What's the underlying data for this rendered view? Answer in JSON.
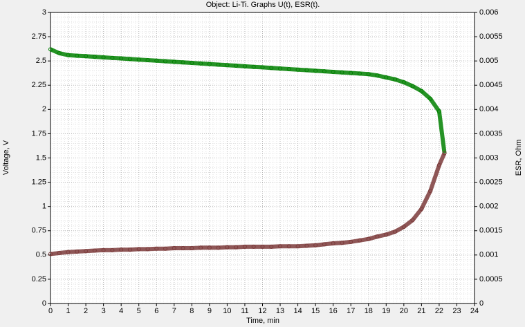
{
  "chart_data": {
    "type": "line",
    "title": "Object: Li-Ti. Graphs U(t), ESR(t).",
    "x_label": "Time, min",
    "y_label": "Voltage, V",
    "y2_label": "ESR, Ohm",
    "xlim": [
      0,
      24
    ],
    "xticks": [
      0,
      1,
      2,
      3,
      4,
      5,
      6,
      7,
      8,
      9,
      10,
      11,
      12,
      13,
      14,
      15,
      16,
      17,
      18,
      19,
      20,
      21,
      22,
      23,
      24
    ],
    "ylim": [
      0,
      3
    ],
    "yticks": [
      0,
      0.25,
      0.5,
      0.75,
      1,
      1.25,
      1.5,
      1.75,
      2,
      2.25,
      2.5,
      2.75,
      3
    ],
    "y2lim": [
      0,
      0.006
    ],
    "y2ticks": [
      0,
      0.0005,
      0.001,
      0.0015,
      0.002,
      0.0025,
      0.003,
      0.0035,
      0.004,
      0.0045,
      0.005,
      0.0055,
      0.006
    ],
    "grid": true,
    "series": [
      {
        "color": "#008000",
        "x": [
          0,
          0.5,
          1,
          1.5,
          2,
          2.5,
          3,
          3.5,
          4,
          4.5,
          5,
          5.5,
          6,
          6.5,
          7,
          7.5,
          8,
          8.5,
          9,
          9.5,
          10,
          10.5,
          11,
          11.5,
          12,
          12.5,
          13,
          13.5,
          14,
          14.5,
          15,
          15.5,
          16,
          16.5,
          17,
          17.5,
          18,
          18.5,
          19,
          19.5,
          20,
          20.5,
          21,
          21.5,
          22,
          22.3
        ],
        "values": [
          2.62,
          2.58,
          2.56,
          2.554,
          2.549,
          2.543,
          2.537,
          2.531,
          2.526,
          2.52,
          2.514,
          2.508,
          2.503,
          2.497,
          2.491,
          2.485,
          2.48,
          2.474,
          2.468,
          2.462,
          2.457,
          2.451,
          2.445,
          2.439,
          2.434,
          2.428,
          2.422,
          2.416,
          2.41,
          2.405,
          2.399,
          2.393,
          2.387,
          2.382,
          2.376,
          2.37,
          2.364,
          2.35,
          2.33,
          2.31,
          2.28,
          2.24,
          2.19,
          2.11,
          1.98,
          1.55
        ]
      },
      {
        "color": "#7b3a3a",
        "axis": "y2",
        "x": [
          0,
          0.5,
          1,
          1.5,
          2,
          2.5,
          3,
          3.5,
          4,
          4.5,
          5,
          5.5,
          6,
          6.5,
          7,
          7.5,
          8,
          8.5,
          9,
          9.5,
          10,
          10.5,
          11,
          11.5,
          12,
          12.5,
          13,
          13.5,
          14,
          14.5,
          15,
          15.5,
          16,
          16.5,
          17,
          17.5,
          18,
          18.5,
          19,
          19.5,
          20,
          20.5,
          21,
          21.5,
          22,
          22.3
        ],
        "values": [
          0.00102,
          0.00104,
          0.00106,
          0.00107,
          0.00108,
          0.00109,
          0.0011,
          0.0011,
          0.00111,
          0.00111,
          0.00112,
          0.00112,
          0.00113,
          0.00113,
          0.00114,
          0.00114,
          0.00114,
          0.00115,
          0.00115,
          0.00115,
          0.00116,
          0.00116,
          0.00117,
          0.00117,
          0.00117,
          0.00117,
          0.00118,
          0.00118,
          0.00118,
          0.00119,
          0.0012,
          0.00122,
          0.00124,
          0.00125,
          0.00127,
          0.0013,
          0.00133,
          0.00138,
          0.00142,
          0.00148,
          0.00158,
          0.00172,
          0.00195,
          0.00232,
          0.00285,
          0.0031
        ]
      }
    ]
  }
}
